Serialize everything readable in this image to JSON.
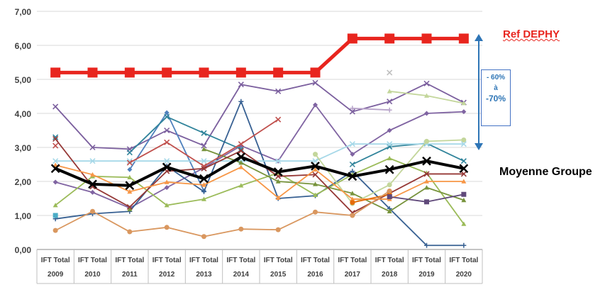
{
  "chart_data": {
    "type": "line",
    "categories": [
      "IFT Total 2009",
      "IFT Total 2010",
      "IFT Total 2011",
      "IFT Total 2012",
      "IFT Total 2013",
      "IFT Total 2014",
      "IFT Total 2015",
      "IFT Total 2016",
      "IFT Total 2017",
      "IFT Total 2018",
      "IFT Total 2019",
      "IFT Total 2020"
    ],
    "category_lines": [
      [
        "IFT Total",
        "2009"
      ],
      [
        "IFT Total",
        "2010"
      ],
      [
        "IFT Total",
        "2011"
      ],
      [
        "IFT Total",
        "2012"
      ],
      [
        "IFT Total",
        "2013"
      ],
      [
        "IFT Total",
        "2014"
      ],
      [
        "IFT Total",
        "2015"
      ],
      [
        "IFT Total",
        "2016"
      ],
      [
        "IFT Total",
        "2017"
      ],
      [
        "IFT Total",
        "2018"
      ],
      [
        "IFT Total",
        "2019"
      ],
      [
        "IFT Total",
        "2020"
      ]
    ],
    "ylim": [
      0,
      7
    ],
    "yticks": [
      "0,00",
      "1,00",
      "2,00",
      "3,00",
      "4,00",
      "5,00",
      "6,00",
      "7,00"
    ],
    "grid": true,
    "series": [
      {
        "name": "Ref DEPHY",
        "color": "#e8251e",
        "marker": "square",
        "width": 5,
        "values": [
          5.2,
          5.2,
          5.2,
          5.2,
          5.2,
          5.2,
          5.2,
          5.2,
          6.2,
          6.2,
          6.2,
          6.2
        ]
      },
      {
        "name": "Moyenne Groupe",
        "color": "#000000",
        "marker": "x",
        "width": 4,
        "values": [
          2.38,
          1.92,
          1.88,
          2.42,
          2.08,
          2.72,
          2.28,
          2.45,
          2.15,
          2.35,
          2.6,
          2.38
        ]
      },
      {
        "color": "#7b5f9e",
        "marker": "x",
        "values": [
          4.2,
          3.0,
          2.95,
          3.5,
          3.05,
          4.85,
          4.65,
          4.9,
          4.05,
          4.35,
          4.88,
          4.32
        ]
      },
      {
        "color": "#8064a2",
        "marker": "diamond",
        "values": [
          1.98,
          1.68,
          1.22,
          1.82,
          2.4,
          3.05,
          2.6,
          4.25,
          2.8,
          3.5,
          4.0,
          4.05
        ]
      },
      {
        "color": "#4f81bd",
        "marker": "diamond",
        "values": [
          null,
          null,
          2.35,
          4.02,
          1.72,
          null,
          null,
          null,
          null,
          null,
          null,
          null
        ]
      },
      {
        "color": "#31849b",
        "marker": "x",
        "values": [
          3.3,
          null,
          2.85,
          3.9,
          3.42,
          2.95,
          null,
          null,
          2.5,
          3.02,
          3.12,
          2.6
        ]
      },
      {
        "color": "#376092",
        "marker": "plus",
        "values": [
          0.9,
          1.05,
          1.12,
          2.45,
          1.7,
          4.35,
          1.5,
          1.58,
          2.3,
          1.2,
          0.12,
          0.12
        ]
      },
      {
        "color": "#a6d8e8",
        "marker": "x",
        "values": [
          2.6,
          2.6,
          2.6,
          2.6,
          2.6,
          2.6,
          2.6,
          2.6,
          3.1,
          3.1,
          3.1,
          3.1
        ]
      },
      {
        "color": "#9bbb59",
        "marker": "triangle",
        "values": [
          1.3,
          2.15,
          2.12,
          1.3,
          1.48,
          1.88,
          2.25,
          1.6,
          2.2,
          2.68,
          2.25,
          0.75
        ]
      },
      {
        "color": "#77933c",
        "marker": "triangle",
        "values": [
          null,
          null,
          1.18,
          null,
          2.95,
          2.55,
          2.0,
          1.92,
          1.65,
          1.12,
          1.82,
          1.45
        ]
      },
      {
        "color": "#c3d69b",
        "marker": "triangle",
        "values": [
          null,
          null,
          null,
          null,
          null,
          null,
          null,
          null,
          null,
          4.65,
          4.52,
          4.3
        ]
      },
      {
        "color": "#c3d69b",
        "marker": "circle",
        "values": [
          null,
          null,
          null,
          null,
          null,
          null,
          null,
          2.8,
          1.35,
          1.9,
          3.18,
          3.22
        ]
      },
      {
        "color": "#bfbfbf",
        "marker": "x",
        "values": [
          null,
          null,
          null,
          null,
          null,
          null,
          null,
          null,
          null,
          5.2,
          null,
          null
        ]
      },
      {
        "color": "#b7a3c9",
        "marker": "plus",
        "values": [
          null,
          null,
          null,
          null,
          null,
          null,
          null,
          null,
          4.15,
          4.1,
          null,
          null
        ]
      },
      {
        "color": "#c0504d",
        "marker": "x",
        "values": [
          3.05,
          null,
          2.55,
          3.15,
          2.45,
          3.1,
          3.82,
          null,
          null,
          null,
          null,
          null
        ]
      },
      {
        "color": "#953735",
        "marker": "x",
        "values": [
          3.25,
          1.85,
          1.25,
          2.3,
          2.38,
          2.9,
          2.15,
          2.2,
          1.08,
          1.65,
          2.22,
          2.22
        ]
      },
      {
        "color": "#f79646",
        "marker": "triangle",
        "values": [
          2.48,
          2.2,
          1.7,
          1.98,
          1.9,
          2.42,
          1.52,
          2.35,
          1.48,
          1.48,
          2.0,
          2.0
        ]
      },
      {
        "color": "#e46c0a",
        "marker": "circle",
        "values": [
          null,
          null,
          null,
          null,
          null,
          null,
          null,
          null,
          1.38,
          1.62,
          null,
          null
        ]
      },
      {
        "color": "#d9975f",
        "marker": "circle",
        "values": [
          0.56,
          1.12,
          0.52,
          0.65,
          0.38,
          0.6,
          0.58,
          1.1,
          1.0,
          1.72,
          null,
          null
        ]
      },
      {
        "color": "#4bacc6",
        "marker": "square",
        "values": [
          1.0,
          null,
          null,
          null,
          null,
          null,
          null,
          null,
          null,
          null,
          null,
          null
        ]
      },
      {
        "color": "#60497a",
        "marker": "square",
        "values": [
          null,
          null,
          null,
          null,
          null,
          null,
          null,
          null,
          null,
          1.55,
          1.4,
          1.62
        ]
      }
    ]
  },
  "annotations": {
    "ref_label": "Ref DEPHY",
    "reduction_line1": "- 60%",
    "reduction_line2": "à",
    "reduction_line3": "-70%",
    "group_label": "Moyenne Groupe",
    "arrow_color": "#2e75b6"
  }
}
